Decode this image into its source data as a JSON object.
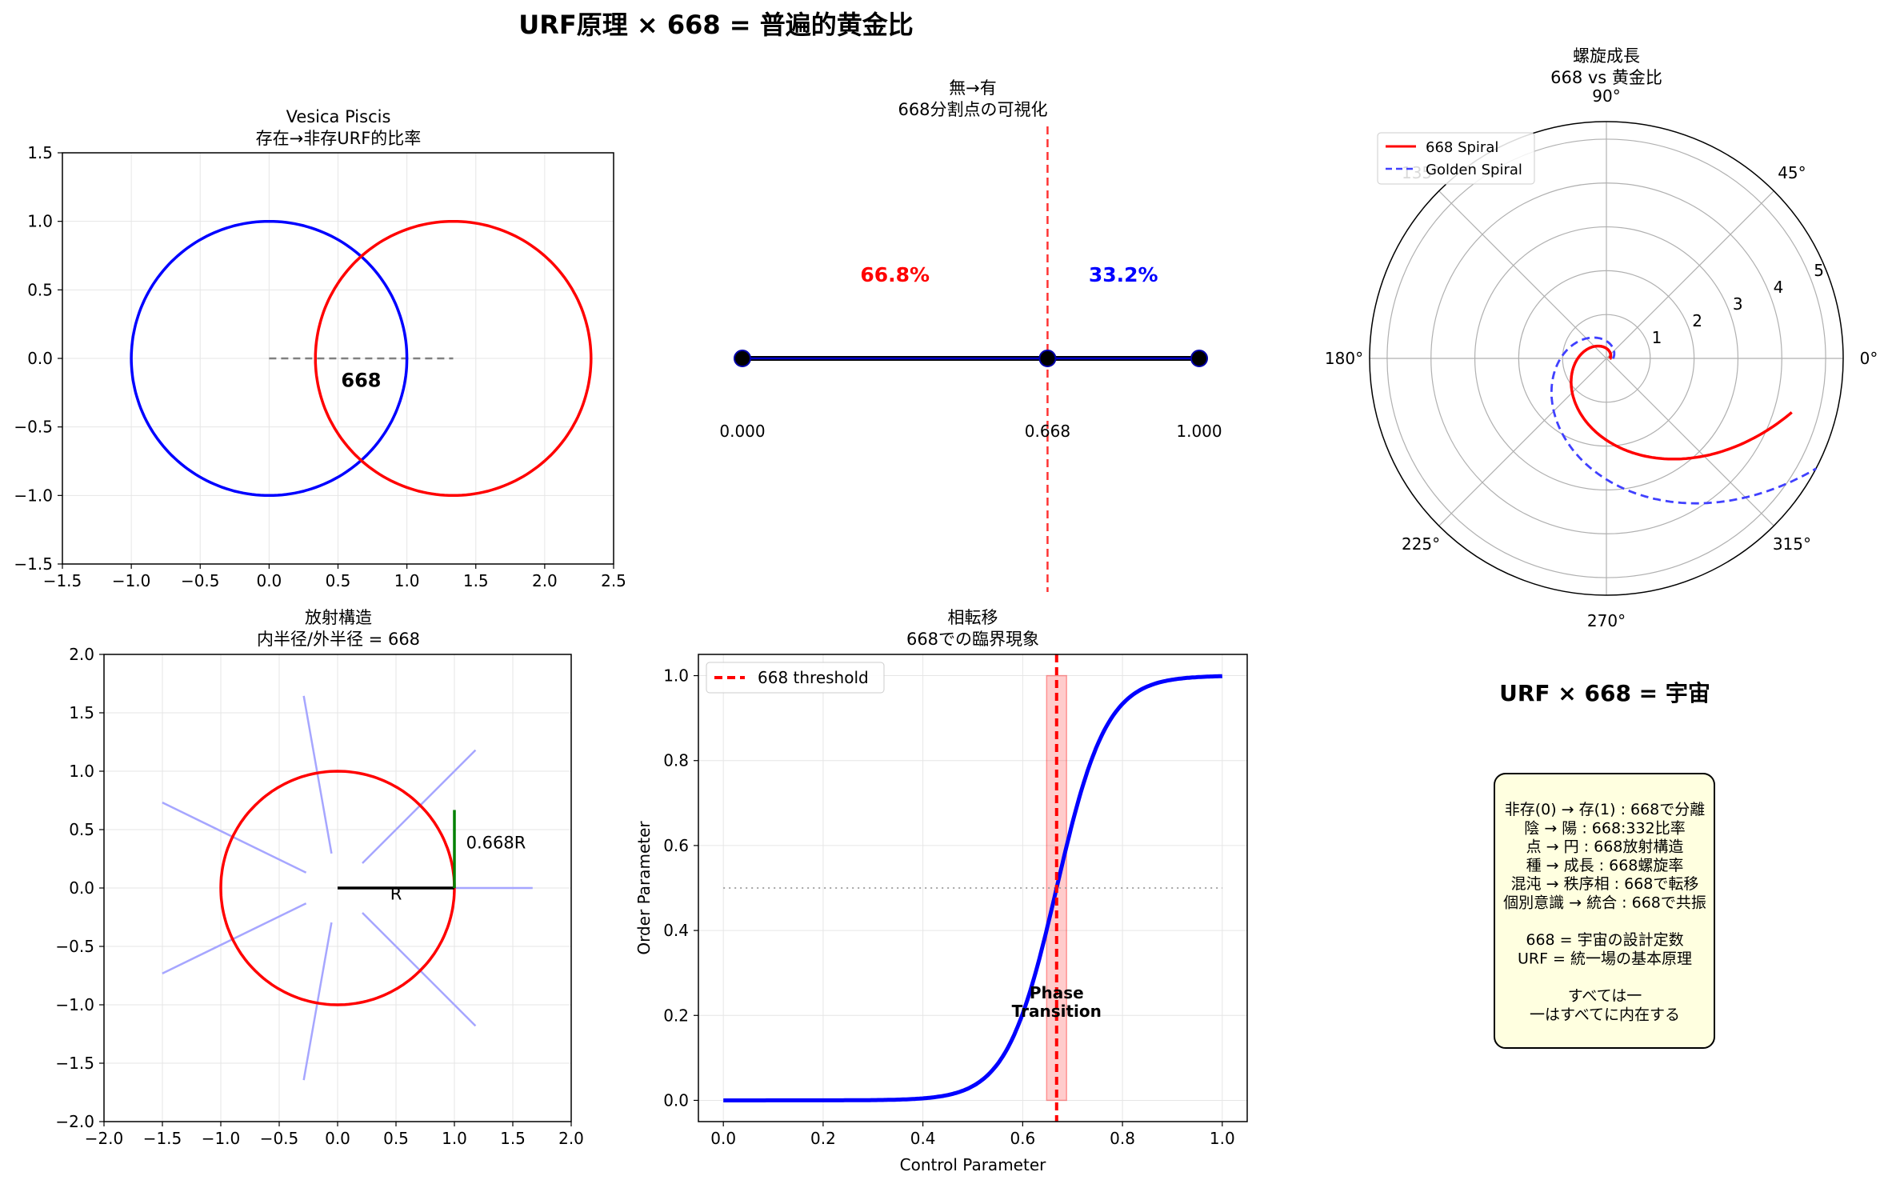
{
  "figure": {
    "suptitle": "URF原理 × 668 = 普遍的黄金比"
  },
  "colors": {
    "red": "#ff0000",
    "blue": "#0000ff",
    "dashed_blue": "#4040ff",
    "light_blue": "#a6a6ff",
    "green": "#008000",
    "box_fill": "#ffffe0",
    "grid": "#e6e6e6"
  },
  "chart_data": [
    {
      "id": "vesica",
      "type": "line",
      "title_line1": "Vesica Piscis",
      "title_line2": "存在→非存URF的比率",
      "xlim": [
        -1.5,
        2.5
      ],
      "ylim": [
        -1.5,
        1.5
      ],
      "xticks": [
        "−1.5",
        "−1.0",
        "−0.5",
        "0.0",
        "0.5",
        "1.0",
        "1.5",
        "2.0",
        "2.5"
      ],
      "yticks": [
        "−1.5",
        "−1.0",
        "−0.5",
        "0.0",
        "0.5",
        "1.0",
        "1.5"
      ],
      "circles": [
        {
          "cx": 0,
          "cy": 0,
          "r": 1,
          "color": "blue"
        },
        {
          "cx": 1.336,
          "cy": 0,
          "r": 1,
          "color": "red"
        }
      ],
      "segment": {
        "x0": 0,
        "x1": 1.336,
        "y": 0
      },
      "annotation": {
        "text": "668",
        "x": 0.668,
        "y": -0.15
      }
    },
    {
      "id": "split",
      "type": "line",
      "title_line1": "無→有",
      "title_line2": "668分割点の可視化",
      "points": [
        0.0,
        0.668,
        1.0
      ],
      "point_labels": [
        "0.000",
        "0.668",
        "1.000"
      ],
      "left_pct": "66.8%",
      "right_pct": "33.2%"
    },
    {
      "id": "polar",
      "type": "line",
      "title_line1": "螺旋成長",
      "title_line2": "668 vs 黄金比",
      "angle_labels": [
        "0°",
        "45°",
        "90°",
        "135°",
        "180°",
        "225°",
        "270°",
        "315°"
      ],
      "radial_ticks": [
        "1",
        "2",
        "3",
        "4",
        "5"
      ],
      "rmax": 5.4,
      "series": [
        {
          "name": "668 Spiral",
          "a": 0.08,
          "growth": 0.668,
          "theta_max": 6.0,
          "color": "red",
          "dash": false
        },
        {
          "name": "Golden Spiral",
          "a": 0.15,
          "growth": 0.618,
          "theta_max": 5.8,
          "color": "dashed_blue",
          "dash": true
        }
      ]
    },
    {
      "id": "radial",
      "type": "line",
      "title_line1": "放射構造",
      "title_line2": "内半径/外半径 = 668",
      "xlim": [
        -2.0,
        2.0
      ],
      "ylim": [
        -2.0,
        2.0
      ],
      "xticks": [
        "−2.0",
        "−1.5",
        "−1.0",
        "−0.5",
        "0.0",
        "0.5",
        "1.0",
        "1.5",
        "2.0"
      ],
      "yticks": [
        "−2.0",
        "−1.5",
        "−1.0",
        "−0.5",
        "0.0",
        "0.5",
        "1.0",
        "1.5",
        "2.0"
      ],
      "circle_r": 1.0,
      "rays": [
        {
          "angle_deg": 0,
          "r0": 0.3,
          "r1": 1.67
        },
        {
          "angle_deg": 45,
          "r0": 0.3,
          "r1": 1.67
        },
        {
          "angle_deg": 100,
          "r0": 0.3,
          "r1": 1.67
        },
        {
          "angle_deg": 154,
          "r0": 0.3,
          "r1": 1.67
        },
        {
          "angle_deg": 206,
          "r0": 0.3,
          "r1": 1.67
        },
        {
          "angle_deg": 260,
          "r0": 0.3,
          "r1": 1.67
        },
        {
          "angle_deg": 315,
          "r0": 0.3,
          "r1": 1.67
        }
      ],
      "radius_label": "R",
      "inner_label": "0.668R",
      "inner_length": 0.668
    },
    {
      "id": "phase",
      "type": "line",
      "title_line1": "相転移",
      "title_line2": "668での臨界現象",
      "xlabel": "Control Parameter",
      "ylabel": "Order Parameter",
      "xlim": [
        -0.05,
        1.05
      ],
      "ylim": [
        -0.05,
        1.05
      ],
      "xticks": [
        "0.0",
        "0.2",
        "0.4",
        "0.6",
        "0.8",
        "1.0"
      ],
      "yticks": [
        "0.0",
        "0.2",
        "0.4",
        "0.6",
        "0.8",
        "1.0"
      ],
      "curve": {
        "center": 0.668,
        "steepness": 20
      },
      "threshold": 0.668,
      "band": [
        0.648,
        0.688
      ],
      "hline": 0.5,
      "legend": "668 threshold",
      "annotation_line1": "Phase",
      "annotation_line2": "Transition"
    }
  ],
  "summary": {
    "heading": "URF × 668 = 宇宙",
    "lines": [
      "非存(0) → 存(1)     : 668で分離",
      "陰 → 陽            : 668:332比率",
      " 点 → 円           : 668放射構造",
      "  種 → 成長        : 668螺旋率",
      "  混沌 → 秩序相    : 668で転移",
      "  個別意識 → 統合    : 668で共振",
      "",
      "668 = 宇宙の設計定数",
      "URF = 統一場の基本原理",
      "",
      "すべては一",
      "一はすべてに内在する"
    ]
  }
}
